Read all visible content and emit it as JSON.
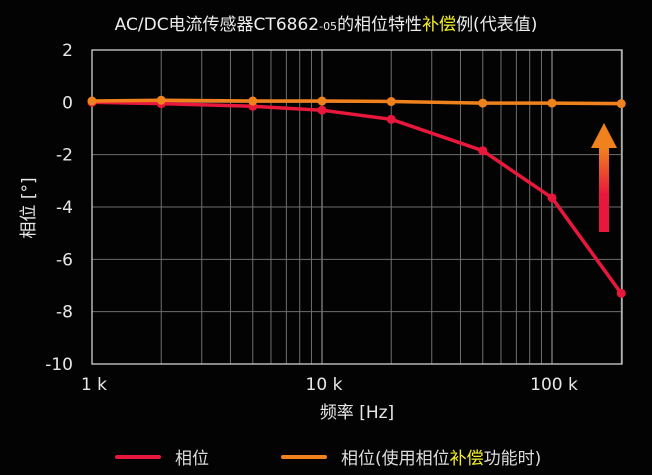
{
  "title": {
    "prefix": "AC/DC电流传感器CT6862",
    "suffix_small": "-05",
    "middle": "的相位特性",
    "highlight": "补偿",
    "end": "例(代表值)"
  },
  "legend": {
    "items": [
      {
        "label_pre": "相位",
        "label_hl": "",
        "label_post": "",
        "color": "#e8183c"
      },
      {
        "label_pre": "相位(使用相位",
        "label_hl": "补偿",
        "label_post": "功能时)",
        "color": "#f0821e"
      }
    ]
  },
  "colors": {
    "background": "#030303",
    "grid": "#8a8a8a",
    "axis": "#cfcfcf",
    "highlight": "#f4ee2a",
    "red": "#e8183c",
    "orange": "#f0821e"
  },
  "chart_data": {
    "type": "line",
    "title": "AC/DC电流传感器CT6862-05的相位特性补偿例(代表值)",
    "xlabel": "频率 [Hz]",
    "ylabel": "相位 [°]",
    "xscale": "log",
    "xlim": [
      1000,
      200000
    ],
    "ylim": [
      -10,
      2
    ],
    "yticks": [
      2,
      0,
      -2,
      -4,
      -6,
      -8,
      -10
    ],
    "xticks": [
      {
        "value": 1000,
        "label": "1 k"
      },
      {
        "value": 10000,
        "label": "10 k"
      },
      {
        "value": 100000,
        "label": "100 k"
      }
    ],
    "grid": true,
    "legend_position": "bottom",
    "x": [
      1000,
      2000,
      5000,
      10000,
      20000,
      50000,
      100000,
      200000
    ],
    "series": [
      {
        "name": "相位",
        "color": "#e8183c",
        "values": [
          0.0,
          -0.05,
          -0.15,
          -0.3,
          -0.65,
          -1.85,
          -3.65,
          -7.3
        ]
      },
      {
        "name": "相位(使用相位补偿功能时)",
        "color": "#f0821e",
        "values": [
          0.05,
          0.08,
          0.05,
          0.05,
          0.03,
          -0.03,
          -0.03,
          -0.05
        ]
      }
    ],
    "annotation": "upward arrow (red→orange gradient) indicating compensation"
  }
}
